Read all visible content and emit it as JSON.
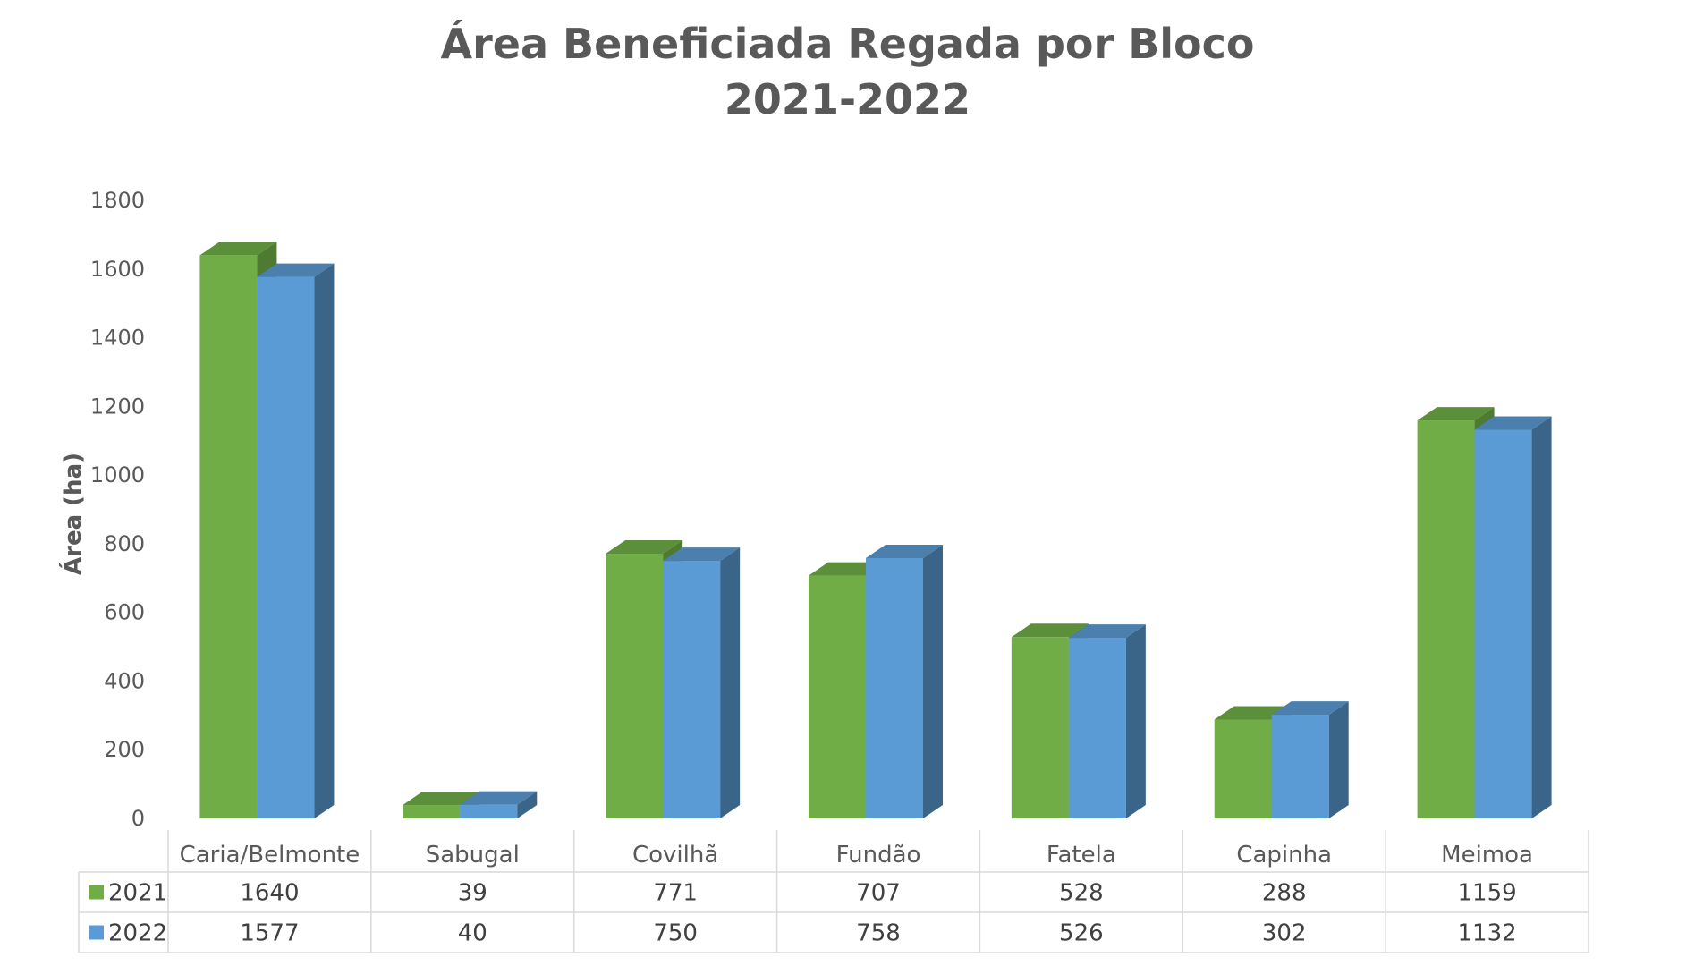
{
  "chart_data": {
    "type": "bar",
    "title": "Área Beneficiada Regada por Bloco",
    "subtitle": "2021-2022",
    "xlabel": "",
    "ylabel": "Área (ha)",
    "ylim": [
      0,
      1800
    ],
    "yticks": [
      0,
      200,
      400,
      600,
      800,
      1000,
      1200,
      1400,
      1600,
      1800
    ],
    "categories": [
      "Caria/Belmonte",
      "Sabugal",
      "Covilhã",
      "Fundão",
      "Fatela",
      "Capinha",
      "Meimoa"
    ],
    "series": [
      {
        "name": "2021",
        "values": [
          1640,
          39,
          771,
          707,
          528,
          288,
          1159
        ],
        "color": "#70ad47",
        "side_color": "#4e7a31",
        "top_color": "#5b8f39"
      },
      {
        "name": "2022",
        "values": [
          1577,
          40,
          750,
          758,
          526,
          302,
          1132
        ],
        "color": "#5b9bd5",
        "side_color": "#3a6589",
        "top_color": "#4a7fae"
      }
    ],
    "grid": false,
    "legend": "data-table",
    "bar_style": "3d"
  }
}
